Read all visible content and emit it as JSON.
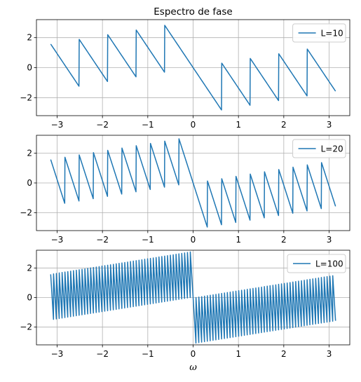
{
  "chart_data": [
    {
      "type": "line",
      "title": "Espectro de fase",
      "xlabel": "",
      "ylabel": "",
      "xlim": [
        -3.4558,
        3.4558
      ],
      "ylim": [
        -3.2,
        3.2
      ],
      "xticks": [
        -3,
        -2,
        -1,
        0,
        1,
        2,
        3
      ],
      "yticks": [
        -2,
        0,
        2
      ],
      "grid": true,
      "legend_position": "upper right",
      "series_color": "#1f77b4",
      "series": [
        {
          "name": "L=10",
          "L": 10,
          "x_range": [
            -3.14159,
            3.14159
          ]
        }
      ]
    },
    {
      "type": "line",
      "title": "",
      "xlabel": "",
      "ylabel": "",
      "xlim": [
        -3.4558,
        3.4558
      ],
      "ylim": [
        -3.2,
        3.2
      ],
      "xticks": [
        -3,
        -2,
        -1,
        0,
        1,
        2,
        3
      ],
      "yticks": [
        -2,
        0,
        2
      ],
      "grid": true,
      "legend_position": "upper right",
      "series_color": "#1f77b4",
      "series": [
        {
          "name": "L=20",
          "L": 20,
          "x_range": [
            -3.14159,
            3.14159
          ]
        }
      ]
    },
    {
      "type": "line",
      "title": "",
      "xlabel": "ω",
      "ylabel": "",
      "xlim": [
        -3.4558,
        3.4558
      ],
      "ylim": [
        -3.2,
        3.2
      ],
      "xticks": [
        -3,
        -2,
        -1,
        0,
        1,
        2,
        3
      ],
      "yticks": [
        -2,
        0,
        2
      ],
      "grid": true,
      "legend_position": "upper right",
      "series_color": "#1f77b4",
      "series": [
        {
          "name": "L=100",
          "L": 100,
          "x_range": [
            -3.14159,
            3.14159
          ]
        }
      ]
    }
  ]
}
